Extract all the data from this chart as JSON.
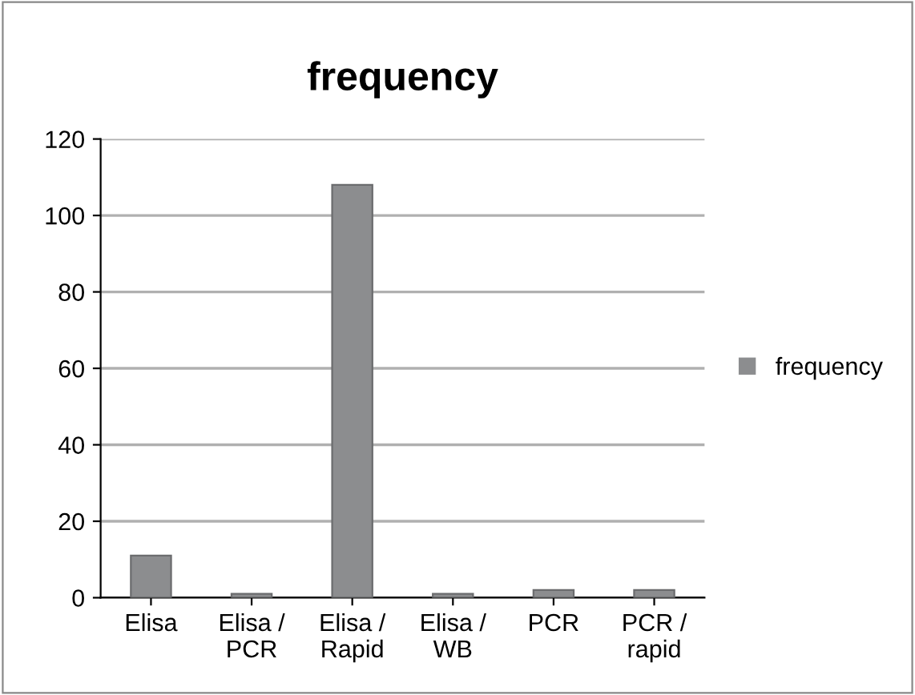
{
  "chart_data": {
    "type": "bar",
    "title": "frequency",
    "categories": [
      "Elisa",
      "Elisa /\nPCR",
      "Elisa /\nRapid",
      "Elisa /\nWB",
      "PCR",
      "PCR /\nrapid"
    ],
    "series": [
      {
        "name": "frequency",
        "color": "#8c8d8f",
        "values": [
          11,
          1,
          108,
          1,
          2,
          2
        ]
      }
    ],
    "ylim": [
      0,
      120
    ],
    "yticks": [
      0,
      20,
      40,
      60,
      80,
      100,
      120
    ],
    "grid": "y",
    "legend": "right"
  }
}
